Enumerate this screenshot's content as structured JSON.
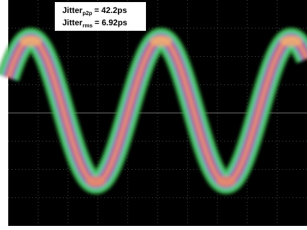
{
  "annotation": {
    "lines": [
      {
        "label": "Jitter",
        "subscript": "p2p",
        "value": "= 42.2ps"
      },
      {
        "label": "Jitter",
        "subscript": "rms",
        "value": "= 6.92ps"
      }
    ]
  }
}
